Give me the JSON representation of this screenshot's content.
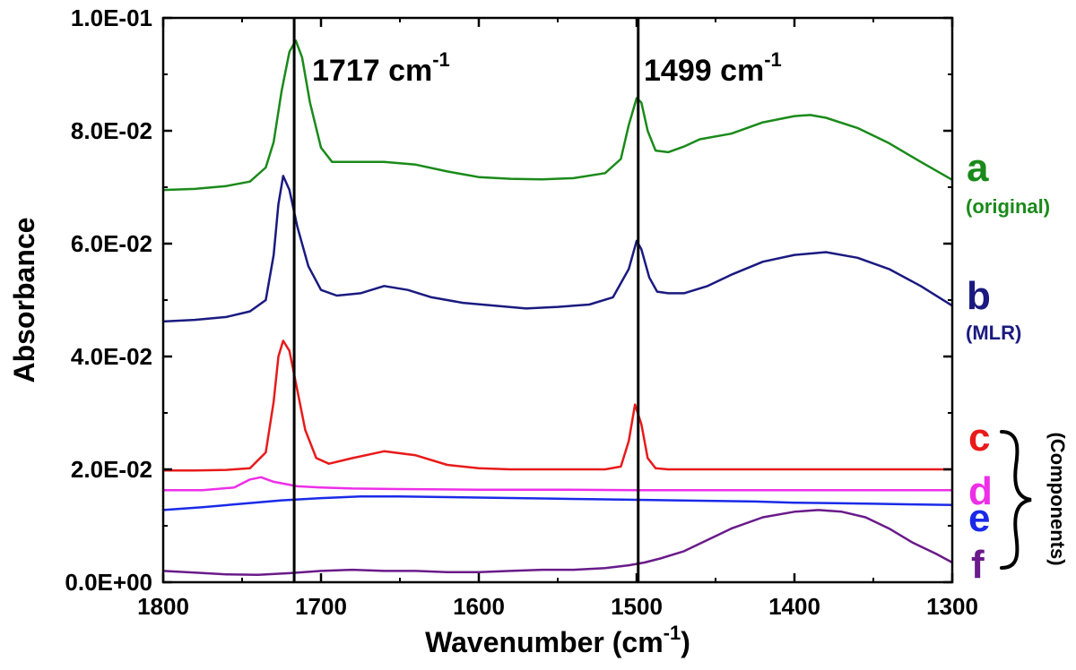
{
  "chart_data": {
    "type": "line",
    "xlabel": "Wavenumber (cm",
    "xlabel_sup": "-1",
    "xlabel_end": ")",
    "ylabel": "Absorbance",
    "xlim": [
      1800,
      1300
    ],
    "ylim": [
      0,
      0.1
    ],
    "x_ticks": [
      "1800",
      "1700",
      "1600",
      "1500",
      "1400",
      "1300"
    ],
    "y_ticks": [
      "0.0E+00",
      "2.0E-02",
      "4.0E-02",
      "6.0E-02",
      "8.0E-02",
      "1.0E-01"
    ],
    "grid": false,
    "annotations": [
      {
        "x": 1717,
        "text": "1717 cm",
        "sup": "-1"
      },
      {
        "x": 1499,
        "text": "1499 cm",
        "sup": "-1"
      }
    ],
    "series": [
      {
        "key": "a",
        "label": "a",
        "sublabel": "(original)",
        "color": "#1a8a1a",
        "points": [
          [
            1800,
            0.0695
          ],
          [
            1780,
            0.0697
          ],
          [
            1760,
            0.0702
          ],
          [
            1745,
            0.071
          ],
          [
            1735,
            0.0735
          ],
          [
            1730,
            0.078
          ],
          [
            1725,
            0.087
          ],
          [
            1720,
            0.094
          ],
          [
            1716,
            0.096
          ],
          [
            1712,
            0.093
          ],
          [
            1707,
            0.085
          ],
          [
            1700,
            0.077
          ],
          [
            1693,
            0.0745
          ],
          [
            1680,
            0.0745
          ],
          [
            1660,
            0.0745
          ],
          [
            1640,
            0.074
          ],
          [
            1620,
            0.0728
          ],
          [
            1600,
            0.0718
          ],
          [
            1580,
            0.0715
          ],
          [
            1560,
            0.0714
          ],
          [
            1540,
            0.0716
          ],
          [
            1520,
            0.0725
          ],
          [
            1510,
            0.075
          ],
          [
            1505,
            0.081
          ],
          [
            1500,
            0.0858
          ],
          [
            1497,
            0.085
          ],
          [
            1493,
            0.08
          ],
          [
            1488,
            0.0765
          ],
          [
            1480,
            0.0762
          ],
          [
            1470,
            0.0772
          ],
          [
            1460,
            0.0785
          ],
          [
            1440,
            0.0795
          ],
          [
            1420,
            0.0815
          ],
          [
            1400,
            0.0826
          ],
          [
            1390,
            0.0828
          ],
          [
            1380,
            0.0823
          ],
          [
            1360,
            0.0805
          ],
          [
            1340,
            0.0778
          ],
          [
            1320,
            0.0745
          ],
          [
            1300,
            0.0713
          ]
        ]
      },
      {
        "key": "b",
        "label": "b",
        "sublabel": "(MLR)",
        "color": "#1a1a80",
        "points": [
          [
            1800,
            0.0462
          ],
          [
            1780,
            0.0465
          ],
          [
            1760,
            0.047
          ],
          [
            1745,
            0.048
          ],
          [
            1735,
            0.05
          ],
          [
            1730,
            0.058
          ],
          [
            1727,
            0.067
          ],
          [
            1724,
            0.072
          ],
          [
            1720,
            0.0695
          ],
          [
            1715,
            0.063
          ],
          [
            1708,
            0.056
          ],
          [
            1700,
            0.0518
          ],
          [
            1690,
            0.0508
          ],
          [
            1675,
            0.0512
          ],
          [
            1660,
            0.0525
          ],
          [
            1645,
            0.0518
          ],
          [
            1630,
            0.0505
          ],
          [
            1610,
            0.0495
          ],
          [
            1590,
            0.049
          ],
          [
            1570,
            0.0485
          ],
          [
            1550,
            0.0488
          ],
          [
            1530,
            0.0492
          ],
          [
            1515,
            0.0505
          ],
          [
            1505,
            0.0555
          ],
          [
            1500,
            0.0605
          ],
          [
            1497,
            0.059
          ],
          [
            1492,
            0.054
          ],
          [
            1487,
            0.0515
          ],
          [
            1480,
            0.0512
          ],
          [
            1470,
            0.0512
          ],
          [
            1455,
            0.0525
          ],
          [
            1440,
            0.0545
          ],
          [
            1420,
            0.0568
          ],
          [
            1400,
            0.058
          ],
          [
            1380,
            0.0585
          ],
          [
            1360,
            0.0575
          ],
          [
            1340,
            0.0555
          ],
          [
            1320,
            0.0525
          ],
          [
            1300,
            0.049
          ]
        ]
      },
      {
        "key": "c",
        "label": "c",
        "sublabel": "",
        "color": "#e81a1a",
        "points": [
          [
            1800,
            0.0198
          ],
          [
            1780,
            0.0198
          ],
          [
            1760,
            0.0199
          ],
          [
            1745,
            0.0202
          ],
          [
            1735,
            0.023
          ],
          [
            1730,
            0.032
          ],
          [
            1727,
            0.04
          ],
          [
            1724,
            0.0428
          ],
          [
            1720,
            0.041
          ],
          [
            1715,
            0.034
          ],
          [
            1710,
            0.027
          ],
          [
            1703,
            0.022
          ],
          [
            1695,
            0.021
          ],
          [
            1680,
            0.022
          ],
          [
            1660,
            0.0232
          ],
          [
            1640,
            0.0225
          ],
          [
            1620,
            0.0208
          ],
          [
            1600,
            0.0202
          ],
          [
            1580,
            0.02
          ],
          [
            1560,
            0.02
          ],
          [
            1540,
            0.02
          ],
          [
            1520,
            0.02
          ],
          [
            1510,
            0.0205
          ],
          [
            1505,
            0.025
          ],
          [
            1501,
            0.0315
          ],
          [
            1497,
            0.028
          ],
          [
            1493,
            0.022
          ],
          [
            1488,
            0.0202
          ],
          [
            1480,
            0.02
          ],
          [
            1460,
            0.02
          ],
          [
            1440,
            0.02
          ],
          [
            1420,
            0.02
          ],
          [
            1400,
            0.02
          ],
          [
            1380,
            0.02
          ],
          [
            1360,
            0.02
          ],
          [
            1340,
            0.02
          ],
          [
            1320,
            0.02
          ],
          [
            1300,
            0.02
          ]
        ]
      },
      {
        "key": "d",
        "label": "d",
        "sublabel": "",
        "color": "#ee2ee8",
        "points": [
          [
            1800,
            0.0163
          ],
          [
            1775,
            0.0163
          ],
          [
            1755,
            0.0168
          ],
          [
            1745,
            0.0182
          ],
          [
            1738,
            0.0186
          ],
          [
            1730,
            0.0178
          ],
          [
            1715,
            0.017
          ],
          [
            1700,
            0.0168
          ],
          [
            1680,
            0.0166
          ],
          [
            1650,
            0.0165
          ],
          [
            1600,
            0.0164
          ],
          [
            1550,
            0.0164
          ],
          [
            1500,
            0.0163
          ],
          [
            1450,
            0.0163
          ],
          [
            1400,
            0.0163
          ],
          [
            1350,
            0.0163
          ],
          [
            1300,
            0.0163
          ]
        ]
      },
      {
        "key": "e",
        "label": "e",
        "sublabel": "",
        "color": "#1a2ae8",
        "points": [
          [
            1800,
            0.0128
          ],
          [
            1775,
            0.0133
          ],
          [
            1750,
            0.0139
          ],
          [
            1725,
            0.0145
          ],
          [
            1700,
            0.0149
          ],
          [
            1675,
            0.0152
          ],
          [
            1650,
            0.0152
          ],
          [
            1625,
            0.0151
          ],
          [
            1600,
            0.015
          ],
          [
            1575,
            0.0149
          ],
          [
            1550,
            0.0148
          ],
          [
            1525,
            0.0147
          ],
          [
            1500,
            0.0146
          ],
          [
            1475,
            0.0145
          ],
          [
            1450,
            0.0144
          ],
          [
            1425,
            0.0143
          ],
          [
            1400,
            0.0141
          ],
          [
            1375,
            0.014
          ],
          [
            1350,
            0.0139
          ],
          [
            1325,
            0.0138
          ],
          [
            1300,
            0.0137
          ]
        ]
      },
      {
        "key": "f",
        "label": "f",
        "sublabel": "",
        "color": "#6a1a8a",
        "points": [
          [
            1800,
            0.002
          ],
          [
            1780,
            0.0017
          ],
          [
            1760,
            0.0014
          ],
          [
            1740,
            0.0013
          ],
          [
            1720,
            0.0016
          ],
          [
            1700,
            0.002
          ],
          [
            1680,
            0.0022
          ],
          [
            1660,
            0.002
          ],
          [
            1640,
            0.002
          ],
          [
            1620,
            0.0018
          ],
          [
            1600,
            0.0018
          ],
          [
            1580,
            0.002
          ],
          [
            1560,
            0.0022
          ],
          [
            1540,
            0.0022
          ],
          [
            1520,
            0.0025
          ],
          [
            1505,
            0.003
          ],
          [
            1495,
            0.0035
          ],
          [
            1485,
            0.0042
          ],
          [
            1470,
            0.0055
          ],
          [
            1455,
            0.0075
          ],
          [
            1440,
            0.0095
          ],
          [
            1420,
            0.0115
          ],
          [
            1400,
            0.0125
          ],
          [
            1385,
            0.0128
          ],
          [
            1370,
            0.0125
          ],
          [
            1355,
            0.0115
          ],
          [
            1340,
            0.0095
          ],
          [
            1325,
            0.007
          ],
          [
            1310,
            0.005
          ],
          [
            1300,
            0.0035
          ]
        ]
      }
    ],
    "group_label": "(Components)"
  }
}
